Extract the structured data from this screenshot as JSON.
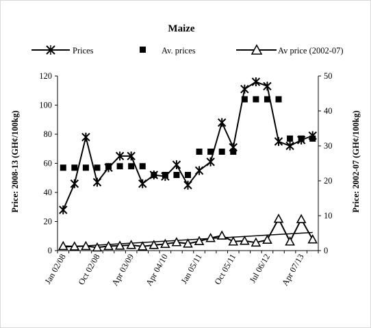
{
  "chart_data": {
    "type": "line",
    "title": "Maize",
    "ylabel": "Price: 2008-13 (GH¢/100kg)",
    "y2label": "Price: 2002-07 (GH¢/100kg)",
    "ylim": [
      0,
      120
    ],
    "y2lim": [
      0,
      50
    ],
    "yticks": [
      "0",
      "20",
      "40",
      "60",
      "80",
      "100",
      "120"
    ],
    "y2ticks": [
      "0",
      "10",
      "20",
      "30",
      "40",
      "50"
    ],
    "xtick_labels": [
      "Jan 02/08",
      "Oct 02/08",
      "Apr 03/09",
      "Apr 04/10",
      "Jan 05/11",
      "Oct 05/11",
      "Jul 06/12",
      "Apr 07/13"
    ],
    "grid": false,
    "legend_position": "top",
    "series": [
      {
        "name": "Prices",
        "axis": "left",
        "marker": "x",
        "values": [
          28,
          46,
          78,
          47,
          57,
          65,
          65,
          46,
          52,
          51,
          59,
          45,
          55,
          61,
          88,
          71,
          111,
          116,
          113,
          75,
          72,
          76,
          79
        ]
      },
      {
        "name": "Av. prices",
        "axis": "left",
        "marker": "square",
        "values": [
          57,
          57,
          57,
          57,
          58,
          58,
          58,
          58,
          52,
          52,
          52,
          52,
          68,
          68,
          68,
          68,
          104,
          104,
          104,
          104,
          77,
          77,
          77
        ]
      },
      {
        "name": "Av price (2002-07)",
        "axis": "right",
        "marker": "triangle",
        "values": [
          1.3,
          1.2,
          1.3,
          0.9,
          1.3,
          1.4,
          1.6,
          1.2,
          1.6,
          1.9,
          2.4,
          2.0,
          2.7,
          3.6,
          4.3,
          2.6,
          2.8,
          2.3,
          3.1,
          9.1,
          2.6,
          9.0,
          3.2
        ]
      }
    ],
    "trendline": {
      "series": "Av price (2002-07)",
      "axis": "right",
      "start": 1.0,
      "end": 5.2
    }
  }
}
